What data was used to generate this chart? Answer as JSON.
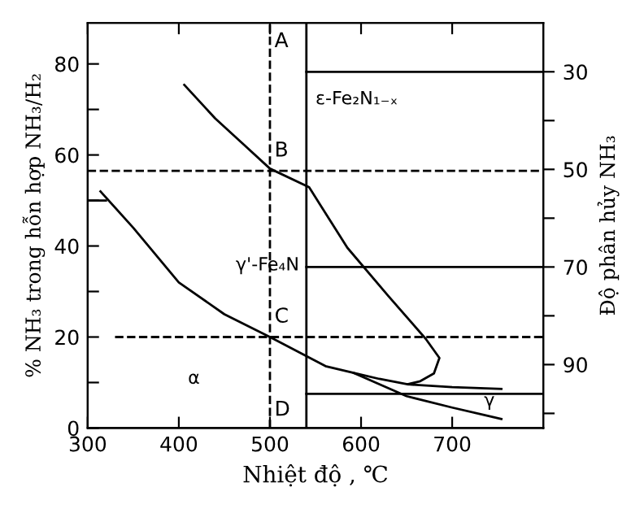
{
  "chart_data": {
    "type": "line",
    "xlabel": "Nhiệt độ , ℃",
    "ylabel": "% NH₃ trong hỗn hợp NH₃/H₂",
    "y2label": "Độ phân hủy NH₃",
    "xlim": [
      300,
      800
    ],
    "xticks": [
      300,
      400,
      500,
      600,
      700
    ],
    "ylim": [
      0,
      89
    ],
    "yticks": [
      0,
      {
        "value": 10,
        "label": null
      },
      20,
      {
        "value": 30,
        "label": null
      },
      40,
      {
        "value": 50,
        "label": null
      },
      60,
      {
        "value": 70,
        "label": null
      },
      80
    ],
    "y2lim": [
      103,
      20
    ],
    "y2ticks": [
      30,
      {
        "value": 40,
        "label": null
      },
      50,
      {
        "value": 60,
        "label": null
      },
      70,
      {
        "value": 80,
        "label": null
      },
      90,
      {
        "value": 100,
        "label": null
      }
    ],
    "grid": false,
    "marker": "none",
    "series": [
      {
        "color": "#000000",
        "line_style": "solid",
        "x": [
          406,
          440,
          470,
          500,
          543,
          585,
          630,
          671,
          686,
          680,
          665,
          651,
          700,
          754
        ],
        "values": [
          75.4,
          68,
          62.5,
          57,
          52.9,
          39.6,
          29,
          19.6,
          15.4,
          12,
          10.3,
          9.6,
          9,
          8.6
        ]
      },
      {
        "color": "#000000",
        "line_style": "solid",
        "x": [
          314,
          350,
          400,
          450,
          500,
          561,
          592,
          650,
          700,
          754
        ],
        "values": [
          52,
          44,
          32,
          25,
          20,
          13.6,
          12.1,
          7,
          4.5,
          2
        ]
      },
      {
        "color": "#000000",
        "line_style": "solid",
        "x": [
          592,
          620,
          651
        ],
        "values": [
          12.1,
          10.8,
          9.6
        ]
      },
      {
        "color": "#000000",
        "line_style": "solid",
        "x": [
          300,
          320
        ],
        "values": [
          50,
          50
        ]
      },
      {
        "color": "#000000",
        "line_style": "dashed",
        "x": [
          330,
          800
        ],
        "values": [
          20,
          20
        ]
      },
      {
        "color": "#000000",
        "line_style": "solid",
        "x": [
          540,
          800
        ],
        "values": [
          7.5,
          7.5
        ]
      },
      {
        "color": "#000000",
        "line_style": "solid",
        "axis": "y2",
        "x": [
          540,
          800
        ],
        "values": [
          30,
          30
        ]
      },
      {
        "color": "#000000",
        "line_style": "solid",
        "axis": "y2",
        "x": [
          540,
          800
        ],
        "values": [
          70,
          70
        ]
      }
    ],
    "ref_lines": [
      {
        "axis": "x",
        "value": 500,
        "color": "#000000",
        "line_style": "dashed"
      },
      {
        "axis": "x",
        "value": 540,
        "color": "#000000",
        "line_style": "solid"
      },
      {
        "axis": "y",
        "value": 56.5,
        "color": "#000000",
        "line_style": "dashed"
      }
    ],
    "annotations": [
      "A",
      "B",
      "C",
      "D",
      "α",
      "γ'-Fe₄N",
      "ε-Fe₂N₁₋ₓ",
      "γ"
    ]
  }
}
